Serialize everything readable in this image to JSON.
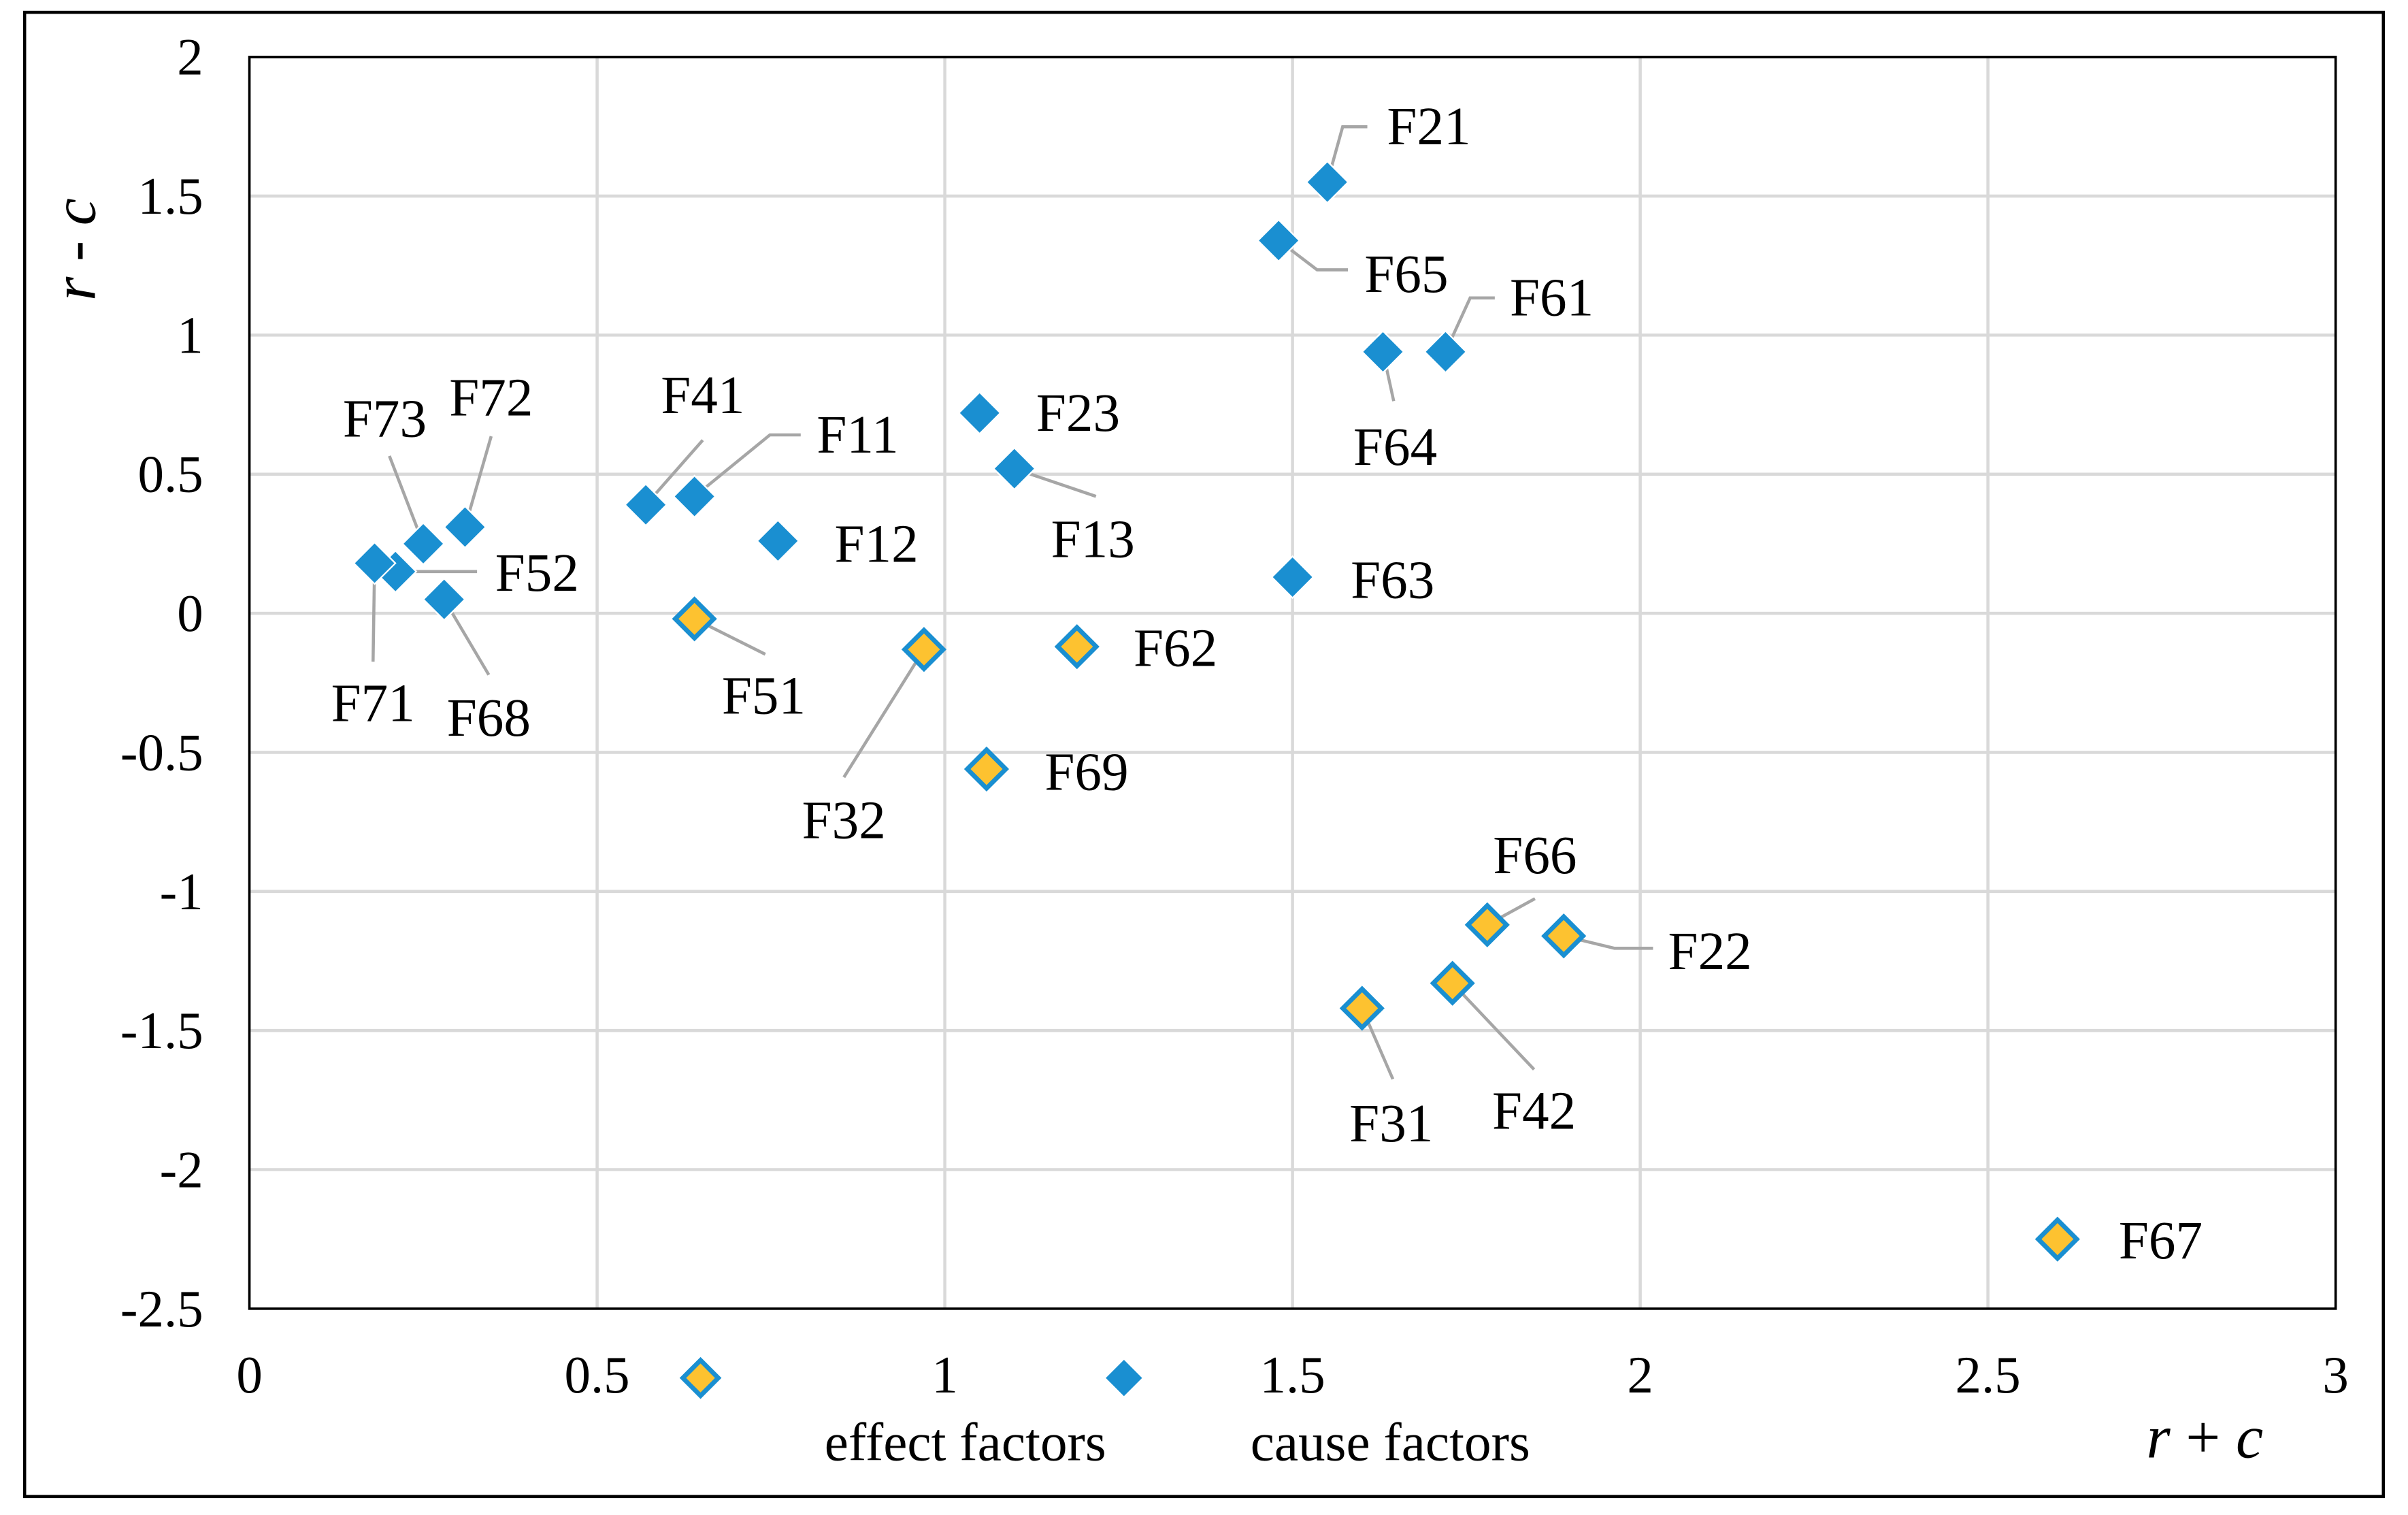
{
  "chart_data": {
    "type": "scatter",
    "title": "",
    "xlabel": "r + c",
    "ylabel": "r - c",
    "xlim": [
      0,
      3
    ],
    "ylim": [
      -2.5,
      2
    ],
    "xticks": [
      0,
      0.5,
      1,
      1.5,
      2,
      2.5,
      3
    ],
    "yticks": [
      2,
      1.5,
      1,
      0.5,
      0,
      -0.5,
      -1,
      -1.5,
      -2,
      -2.5
    ],
    "grid": true,
    "legend": "bottom",
    "series": [
      {
        "name": "effect factors",
        "color": "#fdc230",
        "edge_color": "#1a8fd1",
        "points": [
          {
            "label": "F22",
            "x": 1.89,
            "y": -1.16
          },
          {
            "label": "F31",
            "x": 1.6,
            "y": -1.42
          },
          {
            "label": "F32",
            "x": 0.97,
            "y": -0.13
          },
          {
            "label": "F42",
            "x": 1.73,
            "y": -1.33
          },
          {
            "label": "F51",
            "x": 0.64,
            "y": -0.02
          },
          {
            "label": "F62",
            "x": 1.19,
            "y": -0.12
          },
          {
            "label": "F66",
            "x": 1.78,
            "y": -1.12
          },
          {
            "label": "F67",
            "x": 2.6,
            "y": -2.25
          },
          {
            "label": "F69",
            "x": 1.06,
            "y": -0.56
          }
        ]
      },
      {
        "name": "cause factors",
        "color": "#1a8fd1",
        "edge_color": "#1a8fd1",
        "points": [
          {
            "label": "F11",
            "x": 0.64,
            "y": 0.42
          },
          {
            "label": "F12",
            "x": 0.76,
            "y": 0.26
          },
          {
            "label": "F13",
            "x": 1.1,
            "y": 0.52
          },
          {
            "label": "F21",
            "x": 1.55,
            "y": 1.55
          },
          {
            "label": "F23",
            "x": 1.05,
            "y": 0.72
          },
          {
            "label": "F41",
            "x": 0.57,
            "y": 0.39
          },
          {
            "label": "F52",
            "x": 0.21,
            "y": 0.15
          },
          {
            "label": "F61",
            "x": 1.72,
            "y": 0.94
          },
          {
            "label": "F63",
            "x": 1.5,
            "y": 0.13
          },
          {
            "label": "F64",
            "x": 1.63,
            "y": 0.94
          },
          {
            "label": "F65",
            "x": 1.48,
            "y": 1.34
          },
          {
            "label": "F68",
            "x": 0.28,
            "y": 0.05
          },
          {
            "label": "F71",
            "x": 0.18,
            "y": 0.18
          },
          {
            "label": "F72",
            "x": 0.31,
            "y": 0.31
          },
          {
            "label": "F73",
            "x": 0.25,
            "y": 0.25
          }
        ]
      }
    ]
  }
}
